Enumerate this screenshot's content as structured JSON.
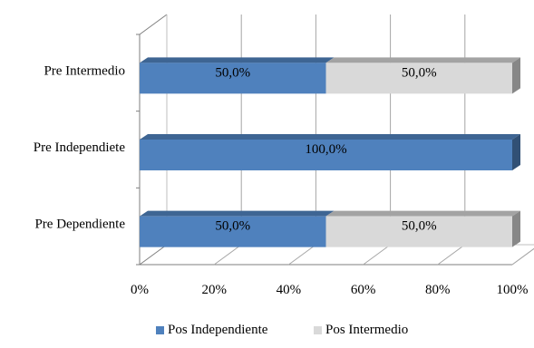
{
  "chart_data": {
    "type": "bar",
    "orientation": "horizontal",
    "stacked": "100%",
    "style": "3d",
    "categories": [
      "Pre Intermedio",
      "Pre Independiete",
      "Pre Dependiente"
    ],
    "series": [
      {
        "name": "Pos Independiente",
        "color": "#4f81bd",
        "values": [
          50.0,
          100.0,
          50.0
        ],
        "labels": [
          "50,0%",
          "100,0%",
          "50,0%"
        ]
      },
      {
        "name": "Pos Intermedio",
        "color": "#d9d9d9",
        "values": [
          50.0,
          0.0,
          50.0
        ],
        "labels": [
          "50,0%",
          "",
          "50,0%"
        ]
      }
    ],
    "x_ticks": [
      "0%",
      "20%",
      "40%",
      "60%",
      "80%",
      "100%"
    ],
    "xlim": [
      0,
      100
    ],
    "grid": true,
    "legend_position": "bottom"
  },
  "legend": {
    "items": [
      {
        "label": "Pos Independiente",
        "color": "#4f81bd"
      },
      {
        "label": "Pos Intermedio",
        "color": "#d9d9d9"
      }
    ]
  }
}
